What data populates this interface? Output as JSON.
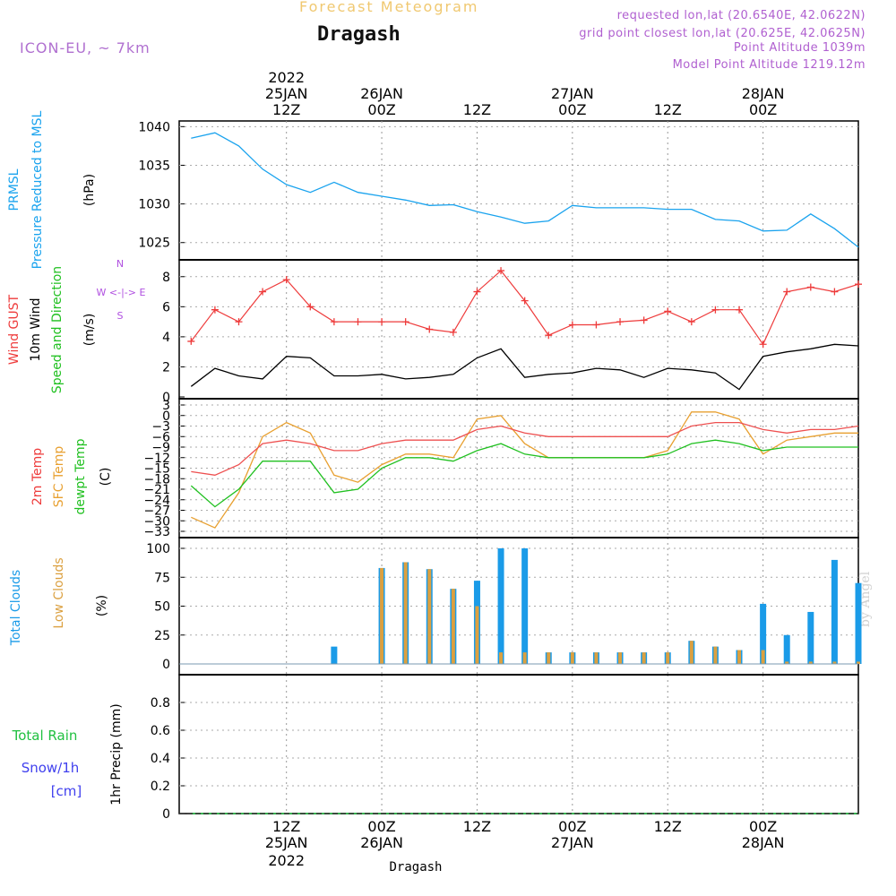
{
  "header": {
    "title": "Forecast Meteogram",
    "location": "Dragash",
    "model": "ICON-EU, ~ 7km",
    "info": [
      "requested lon,lat (20.6540E, 42.0622N)",
      "grid point closest lon,lat (20.625E, 42.0625N)",
      "Point Altitude 1039m",
      "Model Point Altitude 1219.12m"
    ],
    "footer_location": "Dragash",
    "watermark": "by Angel"
  },
  "time_axis": {
    "ticks": [
      {
        "hour": "12Z",
        "date": "25JAN",
        "year": "2022"
      },
      {
        "hour": "00Z",
        "date": "26JAN",
        "year": ""
      },
      {
        "hour": "12Z",
        "date": "",
        "year": ""
      },
      {
        "hour": "00Z",
        "date": "27JAN",
        "year": ""
      },
      {
        "hour": "12Z",
        "date": "",
        "year": ""
      },
      {
        "hour": "00Z",
        "date": "28JAN",
        "year": ""
      }
    ]
  },
  "panel_labels": {
    "pressure": [
      "PRMSL",
      "Pressure Reduced to MSL",
      "(hPa)"
    ],
    "wind": [
      "Wind GUST",
      "10m Wind",
      "Speed and Direction",
      "(m/s)"
    ],
    "compass": [
      "N",
      "W <-|-> E",
      "S"
    ],
    "temp": [
      "2m Temp",
      "SFC Temp",
      "dewpt Temp",
      "(C)"
    ],
    "clouds": [
      "Total Clouds",
      "Low Clouds",
      "(%)"
    ],
    "precip": [
      "Total  Rain",
      "Snow/1h",
      "[cm]",
      "1hr Precip (mm)"
    ]
  },
  "colors": {
    "pressure": "#1aa3ee",
    "gust": "#ee3b3b",
    "wind": "#000000",
    "temp2m": "#ee5050",
    "sfc": "#e8a030",
    "dewpt": "#20c020",
    "total_clouds": "#1a9be8",
    "low_clouds": "#dba040",
    "rain": "#20c040",
    "snow": "#4040ee",
    "compass": "#b050e0"
  },
  "chart_data": [
    {
      "type": "line",
      "title": "PRMSL Pressure Reduced to MSL",
      "ylabel": "(hPa)",
      "ylim": [
        1023,
        1040.5
      ],
      "yticks": [
        "1025",
        "1030",
        "1035",
        "1040"
      ],
      "x_hours": [
        0,
        3,
        6,
        9,
        12,
        15,
        18,
        21,
        24,
        27,
        30,
        33,
        36,
        39,
        42,
        45,
        48,
        51,
        54,
        57,
        60,
        63,
        66,
        69,
        72,
        75,
        78,
        81,
        84
      ],
      "series": [
        {
          "name": "PRMSL",
          "values": [
            1038.5,
            1039.2,
            1037.5,
            1034.5,
            1032.5,
            1031.5,
            1032.8,
            1031.5,
            1031,
            1030.5,
            1029.8,
            1029.9,
            1029,
            1028.3,
            1027.5,
            1027.8,
            1029.8,
            1029.5,
            1029.5,
            1029.5,
            1029.3,
            1029.3,
            1028,
            1027.8,
            1026.5,
            1026.6,
            1028.7,
            1026.8,
            1024.4
          ]
        }
      ]
    },
    {
      "type": "line",
      "title": "Wind GUST / 10m Wind Speed and Direction",
      "ylabel": "(m/s)",
      "ylim": [
        0,
        9
      ],
      "yticks": [
        "0",
        "2",
        "4",
        "6",
        "8"
      ],
      "x_hours": [
        0,
        3,
        6,
        9,
        12,
        15,
        18,
        21,
        24,
        27,
        30,
        33,
        36,
        39,
        42,
        45,
        48,
        51,
        54,
        57,
        60,
        63,
        66,
        69,
        72,
        75,
        78,
        81,
        84
      ],
      "series": [
        {
          "name": "Wind GUST",
          "values": [
            3.7,
            5.8,
            5.0,
            7.0,
            7.8,
            6.0,
            5.0,
            5.0,
            5.0,
            5.0,
            4.5,
            4.3,
            7.0,
            8.4,
            6.4,
            4.1,
            4.8,
            4.8,
            5.0,
            5.1,
            5.7,
            5.0,
            5.8,
            5.8,
            3.5,
            7.0,
            7.3,
            7.0,
            7.5
          ]
        },
        {
          "name": "10m Wind",
          "values": [
            0.7,
            1.9,
            1.4,
            1.2,
            2.7,
            2.6,
            1.4,
            1.4,
            1.5,
            1.2,
            1.3,
            1.5,
            2.6,
            3.2,
            1.3,
            1.5,
            1.6,
            1.9,
            1.8,
            1.3,
            1.9,
            1.8,
            1.6,
            0.5,
            2.7,
            3.0,
            3.2,
            3.5,
            3.4
          ]
        }
      ]
    },
    {
      "type": "line",
      "title": "2m Temp / SFC Temp / dewpt Temp",
      "ylabel": "(C)",
      "ylim": [
        -33,
        3
      ],
      "yticks": [
        "3",
        "0",
        "-3",
        "-6",
        "-9",
        "-12",
        "-15",
        "-18",
        "-21",
        "-24",
        "-27",
        "-30",
        "-33"
      ],
      "x_hours": [
        0,
        3,
        6,
        9,
        12,
        15,
        18,
        21,
        24,
        27,
        30,
        33,
        36,
        39,
        42,
        45,
        48,
        51,
        54,
        57,
        60,
        63,
        66,
        69,
        72,
        75,
        78,
        81,
        84
      ],
      "series": [
        {
          "name": "2m Temp",
          "values": [
            -16,
            -17,
            -14,
            -8,
            -7,
            -8,
            -10,
            -10,
            -8,
            -7,
            -7,
            -7,
            -4,
            -3,
            -5,
            -6,
            -6,
            -6,
            -6,
            -6,
            -6,
            -3,
            -2,
            -2,
            -4,
            -5,
            -4,
            -4,
            -3
          ]
        },
        {
          "name": "SFC Temp",
          "values": [
            -29,
            -32,
            -22,
            -6,
            -2,
            -5,
            -17,
            -19,
            -14,
            -11,
            -11,
            -12,
            -1,
            0,
            -8,
            -12,
            -12,
            -12,
            -12,
            -12,
            -10,
            1,
            1,
            -1,
            -11,
            -7,
            -6,
            -5,
            -5
          ]
        },
        {
          "name": "dewpt Temp",
          "values": [
            -20,
            -26,
            -21,
            -13,
            -13,
            -13,
            -22,
            -21,
            -15,
            -12,
            -12,
            -13,
            -10,
            -8,
            -11,
            -12,
            -12,
            -12,
            -12,
            -12,
            -11,
            -8,
            -7,
            -8,
            -10,
            -9,
            -9,
            -9,
            -9
          ]
        }
      ]
    },
    {
      "type": "bar",
      "title": "Total Clouds / Low Clouds",
      "ylabel": "(%)",
      "ylim": [
        0,
        100
      ],
      "yticks": [
        "0",
        "25",
        "50",
        "75",
        "100"
      ],
      "x_hours": [
        0,
        3,
        6,
        9,
        12,
        15,
        18,
        21,
        24,
        27,
        30,
        33,
        36,
        39,
        42,
        45,
        48,
        51,
        54,
        57,
        60,
        63,
        66,
        69,
        72,
        75,
        78,
        81,
        84
      ],
      "series": [
        {
          "name": "Total Clouds",
          "values": [
            0,
            0,
            0,
            0,
            0,
            0,
            15,
            0,
            83,
            88,
            82,
            65,
            72,
            100,
            100,
            10,
            10,
            10,
            10,
            10,
            10,
            20,
            15,
            12,
            52,
            25,
            45,
            90,
            70
          ]
        },
        {
          "name": "Low Clouds",
          "values": [
            0,
            0,
            0,
            0,
            0,
            0,
            0,
            0,
            83,
            88,
            82,
            65,
            50,
            10,
            10,
            10,
            10,
            10,
            10,
            10,
            10,
            20,
            15,
            12,
            12,
            2,
            2,
            2,
            2
          ]
        }
      ]
    },
    {
      "type": "line",
      "title": "1hr Precip",
      "ylabel": "1hr Precip (mm)",
      "ylim": [
        0,
        1
      ],
      "yticks": [
        "0",
        "0.2",
        "0.4",
        "0.6",
        "0.8"
      ],
      "x_hours": [
        0,
        84
      ],
      "series": [
        {
          "name": "Total Rain",
          "values": [
            0,
            0
          ]
        },
        {
          "name": "Snow/1h",
          "values": [
            0,
            0
          ]
        }
      ]
    }
  ]
}
